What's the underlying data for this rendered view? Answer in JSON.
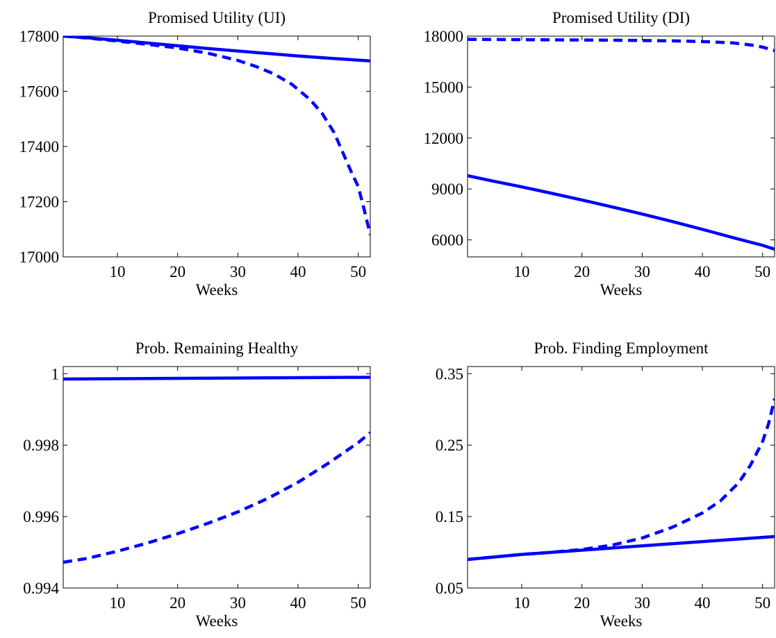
{
  "chart_data": [
    {
      "type": "line",
      "title": "Promised Utility (UI)",
      "xlabel": "Weeks",
      "ylabel": "",
      "xlim": [
        1,
        52
      ],
      "ylim": [
        17000,
        17800
      ],
      "xticks": [
        10,
        20,
        30,
        40,
        50
      ],
      "xtick_labels": [
        "10",
        "20",
        "30",
        "40",
        "50"
      ],
      "yticks": [
        17000,
        17200,
        17400,
        17600,
        17800
      ],
      "ytick_labels": [
        "17000",
        "17200",
        "17400",
        "17600",
        "17800"
      ],
      "grid": false,
      "color": "#0000ff",
      "series": [
        {
          "style": "solid",
          "x": [
            1,
            5,
            10,
            15,
            20,
            25,
            30,
            35,
            40,
            45,
            50,
            52
          ],
          "y": [
            17800,
            17794,
            17785,
            17775,
            17765,
            17755,
            17746,
            17737,
            17728,
            17720,
            17713,
            17710
          ]
        },
        {
          "style": "dashed",
          "x": [
            1,
            5,
            10,
            15,
            20,
            25,
            30,
            33,
            36,
            39,
            42,
            44,
            46,
            48,
            49,
            50,
            51,
            52
          ],
          "y": [
            17800,
            17793,
            17782,
            17770,
            17757,
            17738,
            17712,
            17690,
            17663,
            17625,
            17570,
            17520,
            17450,
            17350,
            17300,
            17255,
            17170,
            17080
          ]
        }
      ]
    },
    {
      "type": "line",
      "title": "Promised Utility (DI)",
      "xlabel": "Weeks",
      "ylabel": "",
      "xlim": [
        1,
        52
      ],
      "ylim": [
        5000,
        18000
      ],
      "xticks": [
        10,
        20,
        30,
        40,
        50
      ],
      "xtick_labels": [
        "10",
        "20",
        "30",
        "40",
        "50"
      ],
      "yticks": [
        6000,
        9000,
        12000,
        15000,
        18000
      ],
      "ytick_labels": [
        "6000",
        "9000",
        "12000",
        "15000",
        "18000"
      ],
      "grid": false,
      "color": "#0000ff",
      "series": [
        {
          "style": "solid",
          "x": [
            1,
            5,
            10,
            15,
            20,
            25,
            30,
            35,
            40,
            45,
            50,
            52
          ],
          "y": [
            9780,
            9480,
            9120,
            8740,
            8350,
            7940,
            7520,
            7080,
            6620,
            6140,
            5680,
            5450
          ]
        },
        {
          "style": "dashed",
          "x": [
            1,
            5,
            10,
            15,
            20,
            25,
            30,
            35,
            40,
            45,
            48,
            50,
            52
          ],
          "y": [
            17810,
            17800,
            17790,
            17780,
            17770,
            17760,
            17740,
            17720,
            17680,
            17600,
            17480,
            17350,
            17150
          ]
        }
      ]
    },
    {
      "type": "line",
      "title": "Prob. Remaining Healthy",
      "xlabel": "Weeks",
      "ylabel": "",
      "xlim": [
        1,
        52
      ],
      "ylim": [
        0.994,
        1.0002
      ],
      "xticks": [
        10,
        20,
        30,
        40,
        50
      ],
      "xtick_labels": [
        "10",
        "20",
        "30",
        "40",
        "50"
      ],
      "yticks": [
        0.994,
        0.996,
        0.998,
        1.0
      ],
      "ytick_labels": [
        "0.994",
        "0.996",
        "0.998",
        "1"
      ],
      "grid": false,
      "color": "#0000ff",
      "series": [
        {
          "style": "solid",
          "x": [
            1,
            10,
            20,
            30,
            40,
            52
          ],
          "y": [
            0.99985,
            0.99986,
            0.99987,
            0.99988,
            0.99989,
            0.9999
          ]
        },
        {
          "style": "dashed",
          "x": [
            1,
            5,
            10,
            15,
            20,
            25,
            30,
            35,
            40,
            45,
            50,
            52
          ],
          "y": [
            0.99472,
            0.99483,
            0.99503,
            0.99526,
            0.99552,
            0.99581,
            0.99613,
            0.99651,
            0.99696,
            0.99749,
            0.99807,
            0.99835
          ]
        }
      ]
    },
    {
      "type": "line",
      "title": "Prob. Finding Employment",
      "xlabel": "Weeks",
      "ylabel": "",
      "xlim": [
        1,
        52
      ],
      "ylim": [
        0.05,
        0.36
      ],
      "xticks": [
        10,
        20,
        30,
        40,
        50
      ],
      "xtick_labels": [
        "10",
        "20",
        "30",
        "40",
        "50"
      ],
      "yticks": [
        0.05,
        0.15,
        0.25,
        0.35
      ],
      "ytick_labels": [
        "0.05",
        "0.15",
        "0.25",
        "0.35"
      ],
      "grid": false,
      "color": "#0000ff",
      "series": [
        {
          "style": "solid",
          "x": [
            1,
            10,
            20,
            30,
            40,
            52
          ],
          "y": [
            0.09,
            0.097,
            0.103,
            0.109,
            0.115,
            0.122
          ]
        },
        {
          "style": "dashed",
          "x": [
            1,
            10,
            15,
            20,
            25,
            30,
            35,
            40,
            43,
            46,
            48,
            50,
            51,
            52
          ],
          "y": [
            0.09,
            0.097,
            0.1,
            0.104,
            0.11,
            0.12,
            0.135,
            0.155,
            0.172,
            0.197,
            0.222,
            0.255,
            0.28,
            0.315
          ]
        }
      ]
    }
  ]
}
